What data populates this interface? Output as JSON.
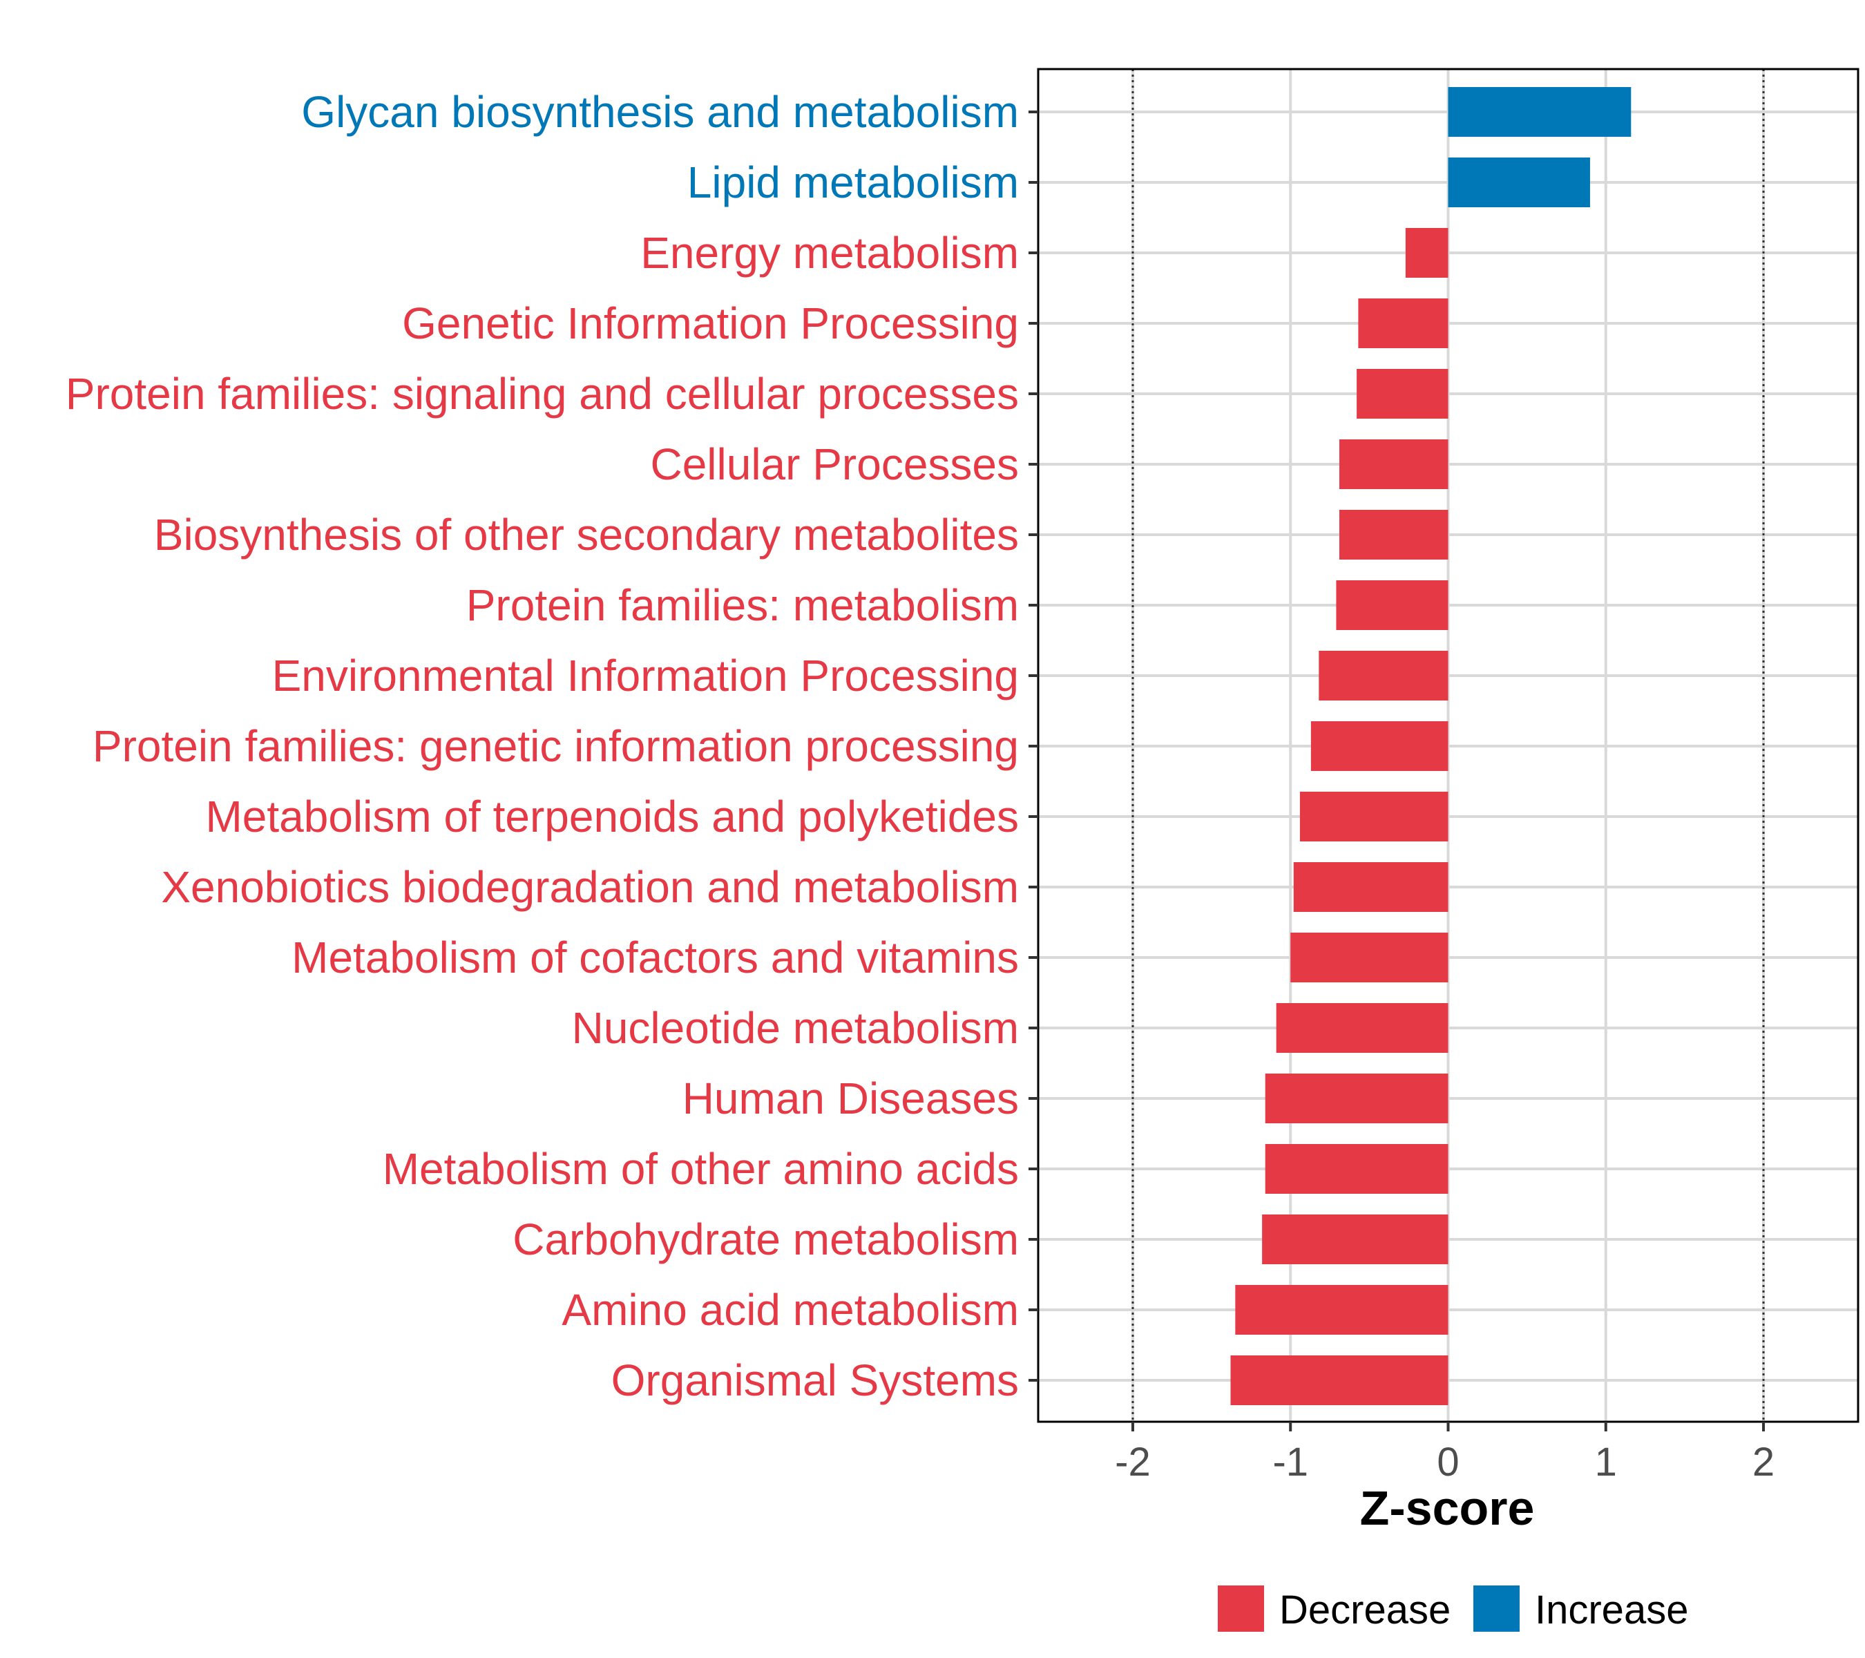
{
  "chart_data": {
    "type": "bar",
    "orientation": "horizontal",
    "title": "",
    "xlabel": "Z-score",
    "ylabel": "",
    "xlim": [
      -2.6,
      2.6
    ],
    "x_ticks": [
      -2,
      -1,
      0,
      1,
      2
    ],
    "reference_lines": [
      -2,
      2
    ],
    "grid": true,
    "categories": [
      "Glycan biosynthesis and metabolism",
      "Lipid metabolism",
      "Energy metabolism",
      "Genetic Information Processing",
      "Protein families: signaling and cellular processes",
      "Cellular Processes",
      "Biosynthesis of other secondary metabolites",
      "Protein families: metabolism",
      "Environmental Information Processing",
      "Protein families: genetic information processing",
      "Metabolism of terpenoids and polyketides",
      "Xenobiotics biodegradation and metabolism",
      "Metabolism of cofactors and vitamins",
      "Nucleotide metabolism",
      "Human Diseases",
      "Metabolism of other amino acids",
      "Carbohydrate metabolism",
      "Amino acid metabolism",
      "Organismal Systems"
    ],
    "values": [
      1.16,
      0.9,
      -0.27,
      -0.57,
      -0.58,
      -0.69,
      -0.69,
      -0.71,
      -0.82,
      -0.87,
      -0.94,
      -0.98,
      -1.0,
      -1.09,
      -1.16,
      -1.16,
      -1.18,
      -1.35,
      -1.38
    ],
    "groups": [
      "Increase",
      "Increase",
      "Decrease",
      "Decrease",
      "Decrease",
      "Decrease",
      "Decrease",
      "Decrease",
      "Decrease",
      "Decrease",
      "Decrease",
      "Decrease",
      "Decrease",
      "Decrease",
      "Decrease",
      "Decrease",
      "Decrease",
      "Decrease",
      "Decrease"
    ],
    "legend": {
      "position": "bottom",
      "entries": [
        {
          "name": "Decrease",
          "color": "#e63946"
        },
        {
          "name": "Increase",
          "color": "#0077b6"
        }
      ]
    }
  }
}
